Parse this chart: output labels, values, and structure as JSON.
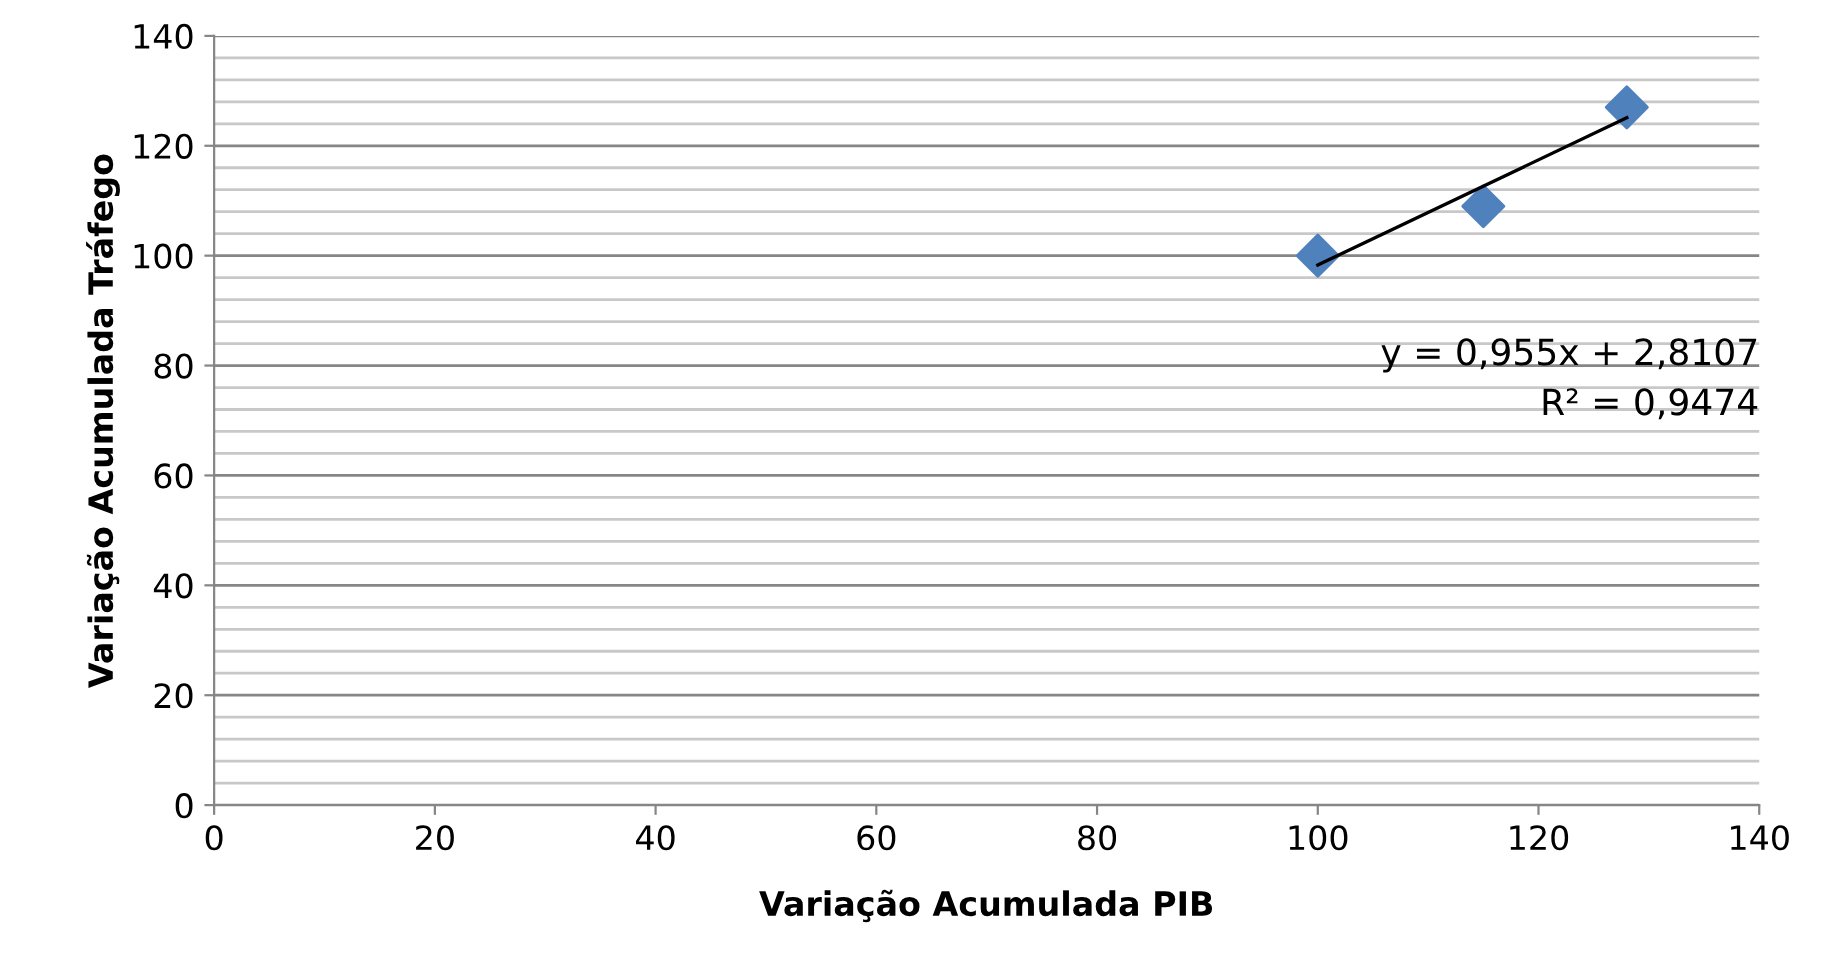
{
  "chart_data": {
    "type": "scatter",
    "xlabel": "Variação Acumulada PIB",
    "ylabel": "Variação Acumulada Tráfego",
    "series": [
      {
        "color": "#4f81bd",
        "marker": "diamond",
        "x": [
          100,
          115,
          128
        ],
        "values": [
          100,
          109,
          127
        ]
      },
      {
        "type": "line",
        "color": "#000000",
        "marker": "none",
        "x": [
          100,
          128
        ],
        "values": [
          98.3,
          125.1
        ]
      }
    ],
    "annotations": [
      "y = 0,955x + 2,8107",
      "R² = 0,9474"
    ],
    "xlim": [
      0,
      140
    ],
    "xticks": [
      0,
      20,
      40,
      60,
      80,
      100,
      120,
      140
    ],
    "ylim": [
      0,
      140
    ],
    "yticks": [
      0,
      20,
      40,
      60,
      80,
      100,
      120,
      140
    ],
    "grid": "y",
    "legend": false
  }
}
